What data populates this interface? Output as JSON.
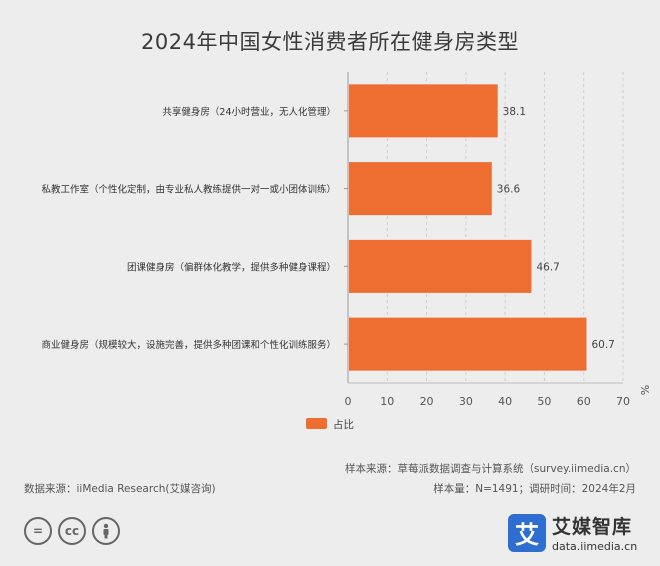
{
  "chart_data": {
    "type": "bar",
    "orientation": "horizontal",
    "title": "2024年中国女性消费者所在健身房类型",
    "categories": [
      "共享健身房（24小时营业，无人化管理）",
      "私教工作室（个性化定制，由专业私人教练提供一对一或小团体训练）",
      "团课健身房（偏群体化教学，提供多种健身课程）",
      "商业健身房（规模较大，设施完善，提供多种团课和个性化训练服务）"
    ],
    "series": [
      {
        "name": "占比",
        "values": [
          38.1,
          36.6,
          46.7,
          60.7
        ]
      }
    ],
    "xlim": [
      0,
      70
    ],
    "xticks": [
      0,
      10,
      20,
      30,
      40,
      50,
      60,
      70
    ],
    "unit": "%",
    "grid": "vertical-dashed",
    "legend": "bottom-left",
    "bar_color": "#ee6d31"
  },
  "footer": {
    "sample_source": "样本来源：草莓派数据调查与计算系统（survey.iimedia.cn）",
    "data_source": "数据来源：iiMedia Research(艾媒咨询)",
    "sample_info": "样本量：N=1491；调研时间：2024年2月"
  },
  "brand": {
    "logo_char": "艾",
    "name": "艾媒智库",
    "url": "data.iimedia.cn"
  },
  "license_icons": [
    "equal-icon",
    "cc-icon",
    "person-icon"
  ]
}
